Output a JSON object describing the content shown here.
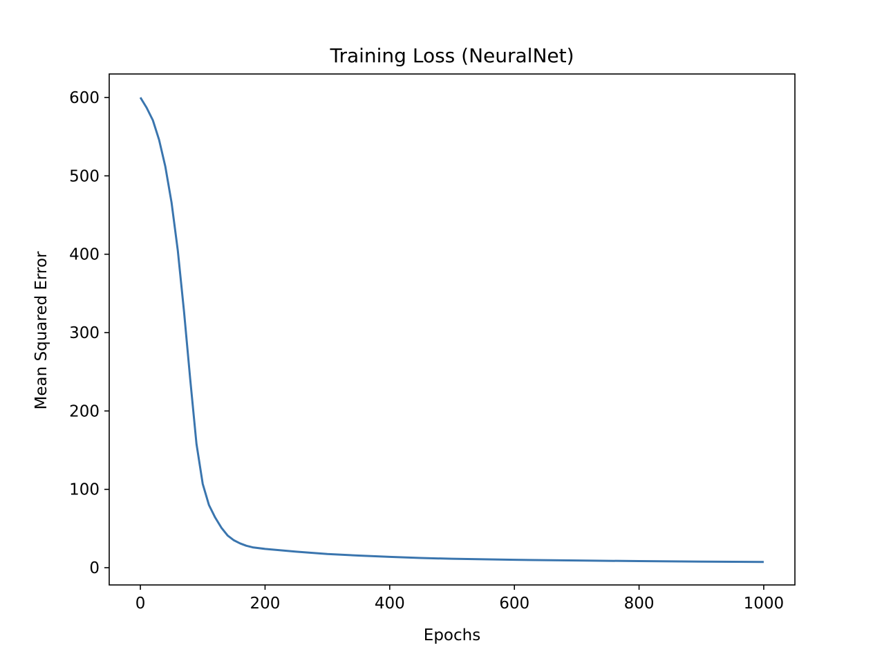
{
  "chart_data": {
    "type": "line",
    "title": "Training Loss (NeuralNet)",
    "xlabel": "Epochs",
    "ylabel": "Mean Squared Error",
    "xlim": [
      -50,
      1050
    ],
    "ylim": [
      -22,
      630
    ],
    "xticks": [
      0,
      200,
      400,
      600,
      800,
      1000
    ],
    "xtick_labels": [
      "0",
      "200",
      "400",
      "600",
      "800",
      "1000"
    ],
    "yticks": [
      0,
      100,
      200,
      300,
      400,
      500,
      600
    ],
    "ytick_labels": [
      "0",
      "100",
      "200",
      "300",
      "400",
      "500",
      "600"
    ],
    "grid": false,
    "line_color": "#3a75ae",
    "series": [
      {
        "x": [
          0,
          10,
          20,
          30,
          40,
          50,
          60,
          70,
          80,
          90,
          100,
          110,
          120,
          130,
          140,
          150,
          160,
          170,
          180,
          200,
          250,
          300,
          350,
          400,
          450,
          500,
          600,
          700,
          800,
          900,
          1000
        ],
        "y": [
          600,
          587,
          571,
          546,
          512,
          466,
          405,
          327,
          240,
          158,
          107,
          80,
          64,
          51,
          41,
          35,
          31,
          28,
          26,
          24,
          20.5,
          17.5,
          15.5,
          13.8,
          12.4,
          11.4,
          10.1,
          9.2,
          8.4,
          7.8,
          7.3
        ]
      }
    ]
  }
}
